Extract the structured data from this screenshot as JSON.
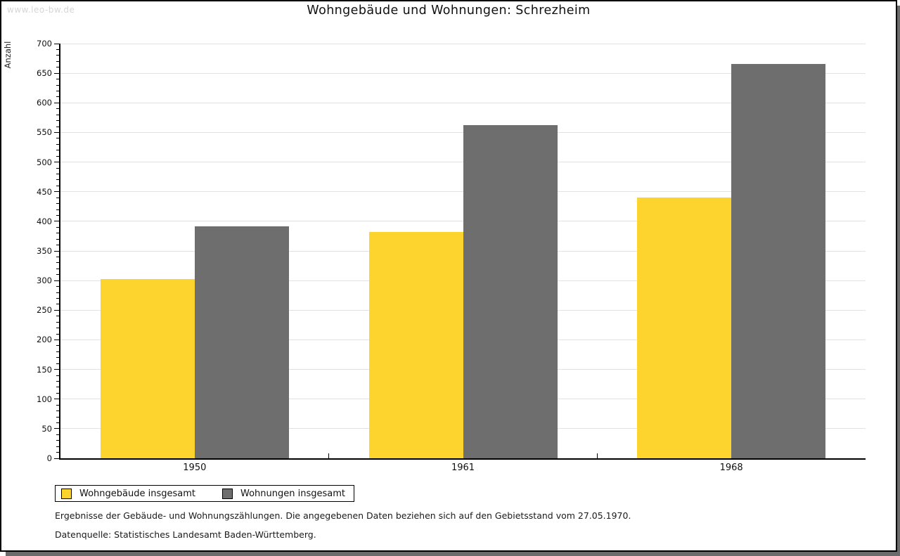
{
  "watermark": "www.leo-bw.de",
  "title": "Wohngebäude und Wohnungen: Schrezheim",
  "chart_data": {
    "type": "bar",
    "title": "Wohngebäude und Wohnungen: Schrezheim",
    "xlabel": "",
    "ylabel": "Anzahl",
    "categories": [
      "1950",
      "1961",
      "1968"
    ],
    "series": [
      {
        "name": "Wohngebäude insgesamt",
        "color": "#fcd42d",
        "values": [
          302,
          382,
          440
        ]
      },
      {
        "name": "Wohnungen insgesamt",
        "color": "#6e6e6e",
        "values": [
          391,
          562,
          665
        ]
      }
    ],
    "ylim": [
      0,
      700
    ],
    "ytick_step": 50,
    "yminor_step": 10,
    "grid": "horizontal",
    "gridline_color": "#e2e2e2",
    "legend_position": "bottom-left"
  },
  "footnotes": [
    "Ergebnisse der Gebäude- und Wohnungszählungen. Die angegebenen Daten beziehen sich auf den Gebietsstand vom 27.05.1970.",
    "Datenquelle: Statistisches Landesamt Baden-Württemberg."
  ]
}
